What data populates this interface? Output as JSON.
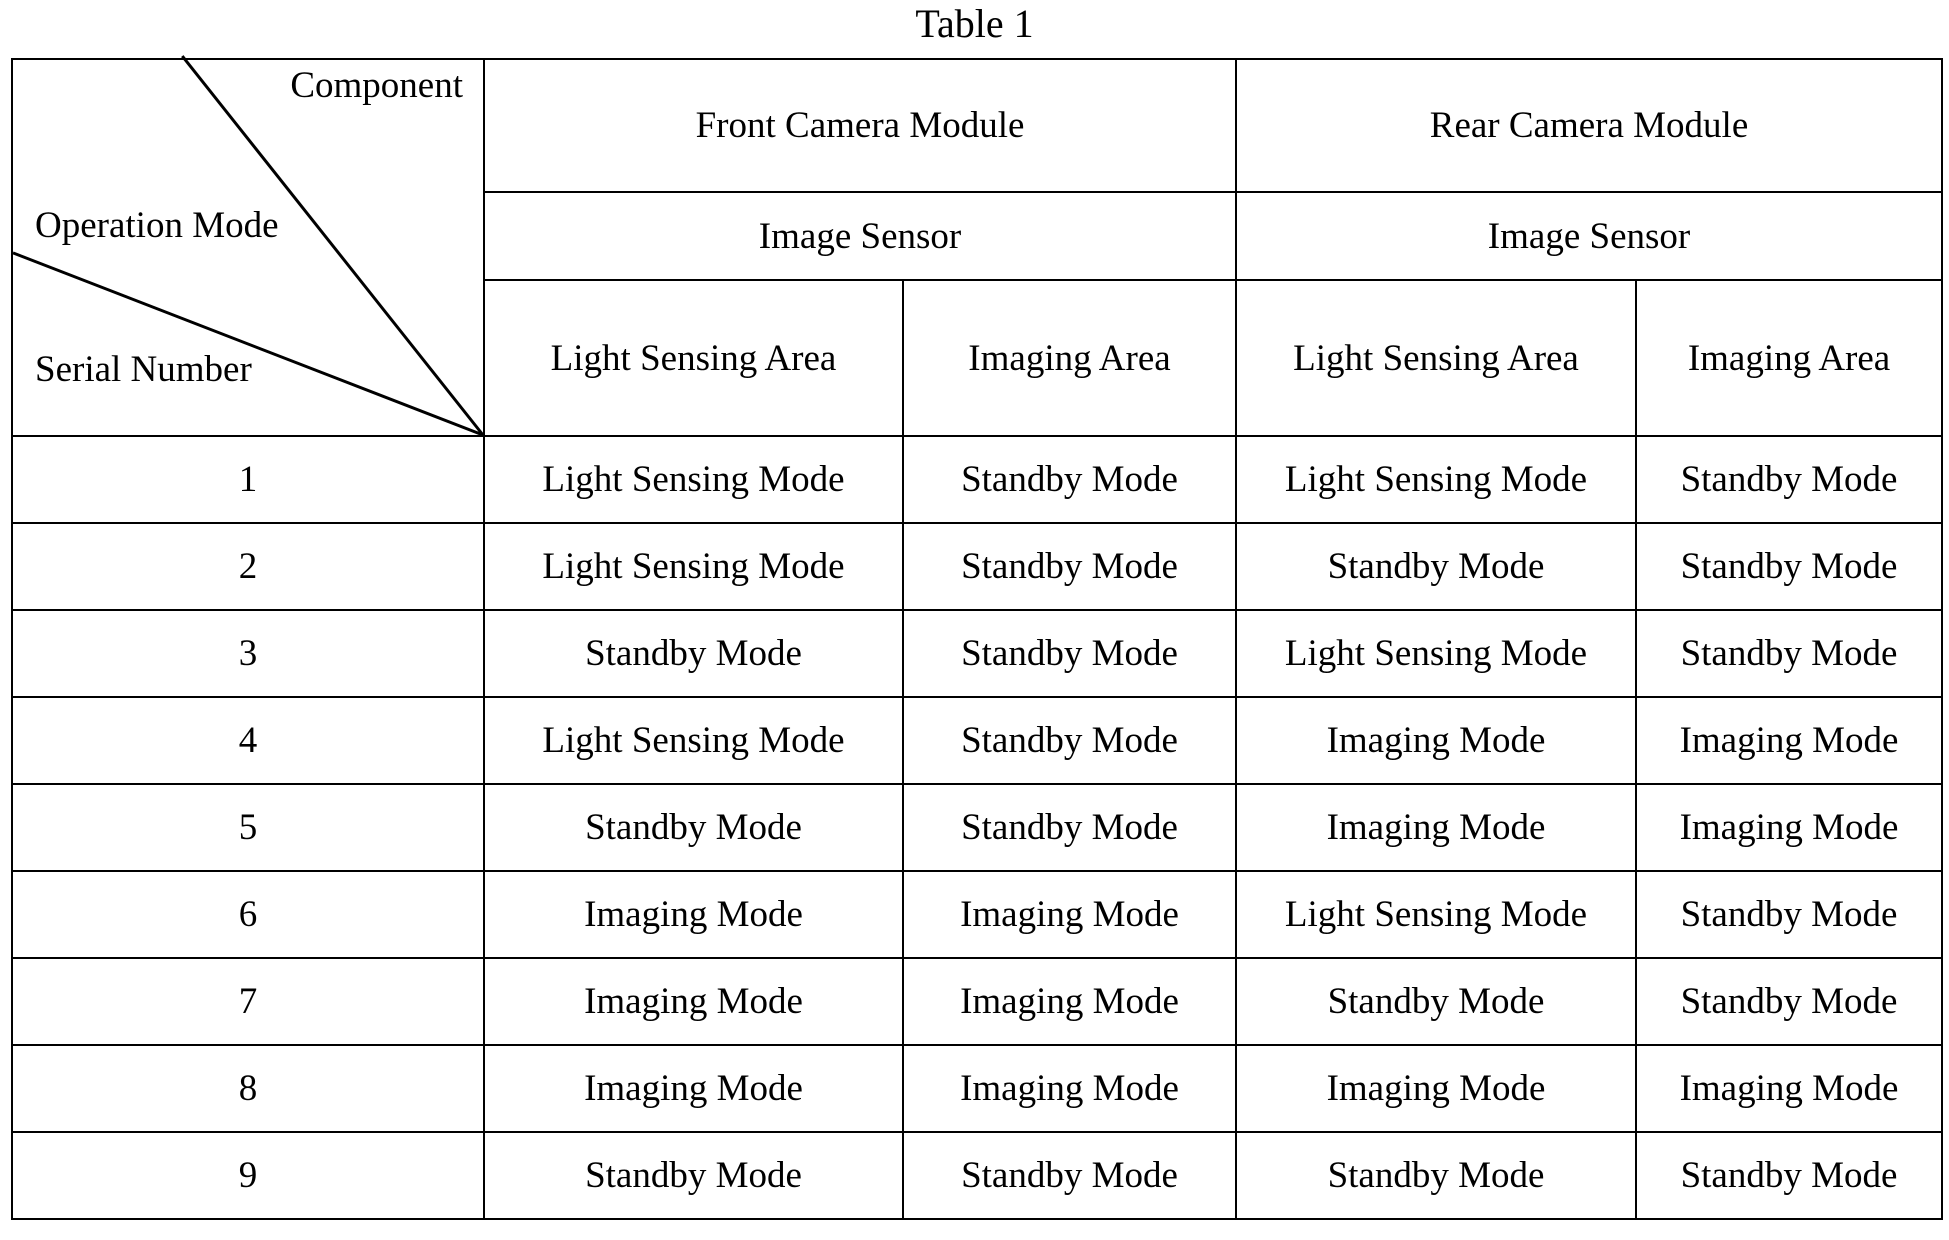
{
  "title": "Table 1",
  "corner": {
    "component": "Component",
    "operation_mode": "Operation Mode",
    "serial_number": "Serial Number"
  },
  "modules": [
    {
      "name": "Front Camera Module",
      "sensor": "Image Sensor",
      "areas": [
        "Light Sensing Area",
        "Imaging Area"
      ]
    },
    {
      "name": "Rear Camera Module",
      "sensor": "Image Sensor",
      "areas": [
        "Light Sensing Area",
        "Imaging Area"
      ]
    }
  ],
  "rows": [
    {
      "serial": "1",
      "cells": [
        "Light Sensing Mode",
        "Standby Mode",
        "Light Sensing Mode",
        "Standby Mode"
      ]
    },
    {
      "serial": "2",
      "cells": [
        "Light Sensing Mode",
        "Standby Mode",
        "Standby Mode",
        "Standby Mode"
      ]
    },
    {
      "serial": "3",
      "cells": [
        "Standby Mode",
        "Standby Mode",
        "Light Sensing Mode",
        "Standby Mode"
      ]
    },
    {
      "serial": "4",
      "cells": [
        "Light Sensing Mode",
        "Standby Mode",
        "Imaging Mode",
        "Imaging Mode"
      ]
    },
    {
      "serial": "5",
      "cells": [
        "Standby Mode",
        "Standby Mode",
        "Imaging Mode",
        "Imaging Mode"
      ]
    },
    {
      "serial": "6",
      "cells": [
        "Imaging Mode",
        "Imaging Mode",
        "Light Sensing Mode",
        "Standby Mode"
      ]
    },
    {
      "serial": "7",
      "cells": [
        "Imaging Mode",
        "Imaging Mode",
        "Standby Mode",
        "Standby Mode"
      ]
    },
    {
      "serial": "8",
      "cells": [
        "Imaging Mode",
        "Imaging Mode",
        "Imaging Mode",
        "Imaging Mode"
      ]
    },
    {
      "serial": "9",
      "cells": [
        "Standby Mode",
        "Standby Mode",
        "Standby Mode",
        "Standby Mode"
      ]
    }
  ]
}
